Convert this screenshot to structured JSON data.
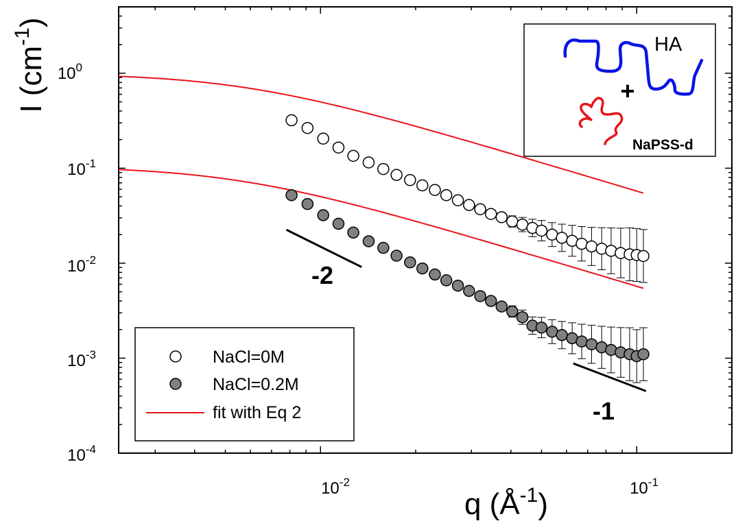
{
  "chart_data": {
    "type": "scatter",
    "xscale": "log",
    "yscale": "log",
    "xlim": [
      0.0023,
      0.2
    ],
    "ylim": [
      0.0001,
      5.0
    ],
    "xlabel": {
      "base": "q (Å",
      "sup": "-1",
      "tail": ")"
    },
    "ylabel": {
      "base": "I (cm",
      "sup": "-1",
      "tail": ")"
    },
    "x_ticks": [
      {
        "value": 0.01,
        "base": "10",
        "exp": "-2"
      },
      {
        "value": 0.1,
        "base": "10",
        "exp": "-1"
      }
    ],
    "y_ticks": [
      {
        "value": 1,
        "base": "10",
        "exp": "0"
      },
      {
        "value": 0.1,
        "base": "10",
        "exp": "-1"
      },
      {
        "value": 0.01,
        "base": "10",
        "exp": "-2"
      },
      {
        "value": 0.001,
        "base": "10",
        "exp": "-3"
      },
      {
        "value": 0.0001,
        "base": "10",
        "exp": "-4"
      }
    ],
    "series": [
      {
        "name": "NaCl=0M",
        "marker": "open-circle",
        "fill": "#ffffff",
        "x": [
          0.0081,
          0.0091,
          0.0102,
          0.0114,
          0.0127,
          0.0142,
          0.0158,
          0.0174,
          0.0192,
          0.021,
          0.023,
          0.025,
          0.0272,
          0.0295,
          0.032,
          0.0346,
          0.0374,
          0.0404,
          0.0435,
          0.0468,
          0.05,
          0.054,
          0.058,
          0.0625,
          0.067,
          0.072,
          0.0775,
          0.083,
          0.089,
          0.095,
          0.1,
          0.105
        ],
        "y": [
          0.32,
          0.265,
          0.205,
          0.165,
          0.135,
          0.115,
          0.098,
          0.085,
          0.075,
          0.066,
          0.059,
          0.052,
          0.046,
          0.041,
          0.037,
          0.033,
          0.0305,
          0.0275,
          0.0255,
          0.0235,
          0.022,
          0.02,
          0.0185,
          0.0172,
          0.016,
          0.015,
          0.0142,
          0.0135,
          0.0128,
          0.0124,
          0.0122,
          0.0119
        ]
      },
      {
        "name": "NaCl=0.2M",
        "marker": "filled-circle",
        "fill": "#808080",
        "x": [
          0.0081,
          0.0091,
          0.0102,
          0.0114,
          0.0127,
          0.0142,
          0.0158,
          0.0174,
          0.0192,
          0.021,
          0.023,
          0.025,
          0.0272,
          0.0295,
          0.032,
          0.0346,
          0.0374,
          0.0404,
          0.0435,
          0.0468,
          0.05,
          0.054,
          0.058,
          0.0625,
          0.067,
          0.072,
          0.0775,
          0.083,
          0.089,
          0.095,
          0.1,
          0.105
        ],
        "y": [
          0.052,
          0.042,
          0.032,
          0.026,
          0.021,
          0.017,
          0.0145,
          0.012,
          0.0102,
          0.0088,
          0.0076,
          0.0066,
          0.0058,
          0.0051,
          0.0045,
          0.004,
          0.0035,
          0.0031,
          0.0027,
          0.0022,
          0.0021,
          0.0019,
          0.00175,
          0.00162,
          0.0015,
          0.0014,
          0.0013,
          0.00122,
          0.00115,
          0.0011,
          0.00105,
          0.0011
        ]
      },
      {
        "name": "fit with Eq 2",
        "marker": "line",
        "color": "#e8141a",
        "model": "I0 / (1 + (q/q0)^2)^0.5",
        "curves": [
          {
            "I0": 1.0,
            "q0": 0.00575,
            "xrange": [
              0.0023,
              0.105
            ]
          },
          {
            "I0": 0.105,
            "q0": 0.00545,
            "xrange": [
              0.0023,
              0.105
            ]
          }
        ]
      }
    ],
    "annotations": [
      {
        "label": "-2",
        "slope": -2,
        "x1": 0.0078,
        "y1": 0.0225,
        "x2": 0.0135,
        "y2": 0.0091
      },
      {
        "label": "-1",
        "slope": -1,
        "x1": 0.063,
        "y1": 0.00088,
        "x2": 0.107,
        "y2": 0.00045
      }
    ],
    "legend": {
      "position": "bottom-left"
    },
    "grid": false
  },
  "inset": {
    "label_top": "HA",
    "label_plus": "+",
    "label_bottom": "NaPSS-d",
    "top_color": "#0a14e6",
    "bottom_color": "#e8141a"
  }
}
